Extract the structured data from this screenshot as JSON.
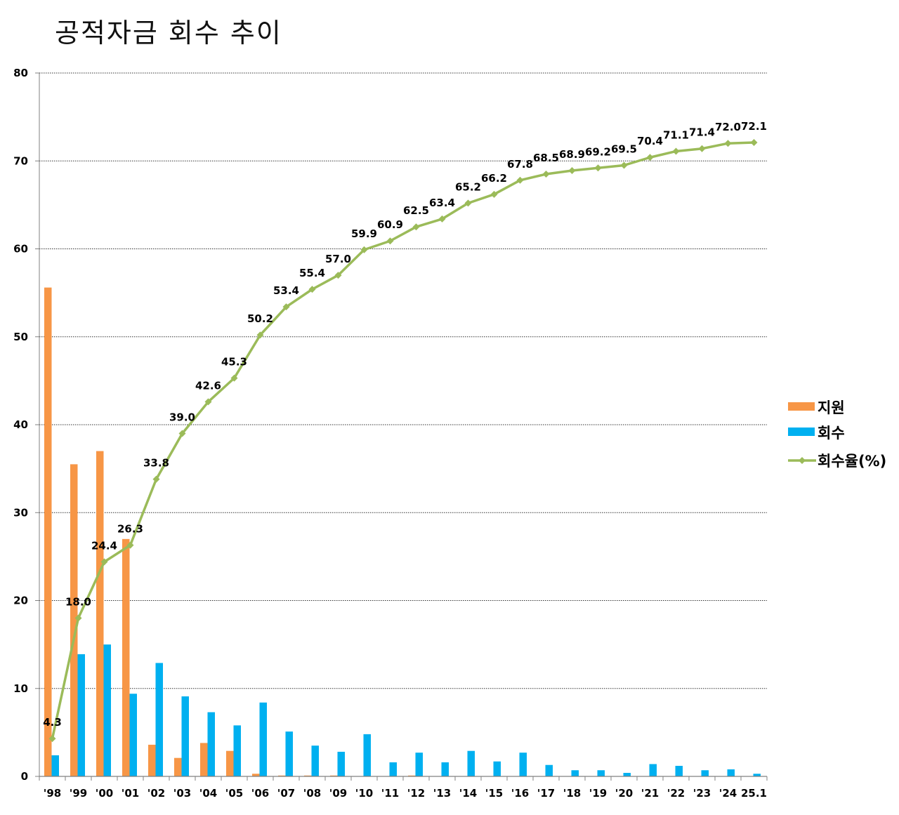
{
  "chart_data": {
    "type": "bar",
    "title": "공적자금 회수 추이",
    "ylim": [
      0,
      80
    ],
    "yticks": [
      "0",
      "10",
      "20",
      "30",
      "40",
      "50",
      "60",
      "70",
      "80"
    ],
    "grid": true,
    "legend_position": "right",
    "categories": [
      "'98",
      "'99",
      "'00",
      "'01",
      "'02",
      "'03",
      "'04",
      "'05",
      "'06",
      "'07",
      "'08",
      "'09",
      "'10",
      "'11",
      "'12",
      "'13",
      "'14",
      "'15",
      "'16",
      "'17",
      "'18",
      "'19",
      "'20",
      "'21",
      "'22",
      "'23",
      "'24",
      "25.1"
    ],
    "series": [
      {
        "name": "지원",
        "type": "bar",
        "color": "#f79646",
        "values": [
          55.6,
          35.5,
          37.0,
          27.0,
          3.6,
          2.1,
          3.8,
          2.9,
          0.3,
          0.1,
          0.1,
          0.1,
          0,
          0,
          0.1,
          0,
          0,
          0,
          0,
          0,
          0,
          0,
          0,
          0,
          0,
          0,
          0,
          0
        ]
      },
      {
        "name": "회수",
        "type": "bar",
        "color": "#00b0f0",
        "values": [
          2.4,
          13.9,
          15.0,
          9.4,
          12.9,
          9.1,
          7.3,
          5.8,
          8.4,
          5.1,
          3.5,
          2.8,
          4.8,
          1.6,
          2.7,
          1.6,
          2.9,
          1.7,
          2.7,
          1.3,
          0.7,
          0.7,
          0.4,
          1.4,
          1.2,
          0.7,
          0.8,
          0.3
        ]
      },
      {
        "name": "회수율(%)",
        "type": "line",
        "color": "#9bbb59",
        "values": [
          4.3,
          18.0,
          24.4,
          26.3,
          33.8,
          39.0,
          42.6,
          45.3,
          50.2,
          53.4,
          55.4,
          57.0,
          59.9,
          60.9,
          62.5,
          63.4,
          65.2,
          66.2,
          67.8,
          68.5,
          68.9,
          69.2,
          69.5,
          70.4,
          71.1,
          71.4,
          72.0,
          72.1
        ],
        "labels": [
          "4.3",
          "18.0",
          "24.4",
          "26.3",
          "33.8",
          "39.0",
          "42.6",
          "45.3",
          "50.2",
          "53.4",
          "55.4",
          "57.0",
          "59.9",
          "60.9",
          "62.5",
          "63.4",
          "65.2",
          "66.2",
          "67.8",
          "68.5",
          "68.9",
          "69.2",
          "69.5",
          "70.4",
          "71.1",
          "71.4",
          "72.0",
          "72.1"
        ]
      }
    ]
  }
}
